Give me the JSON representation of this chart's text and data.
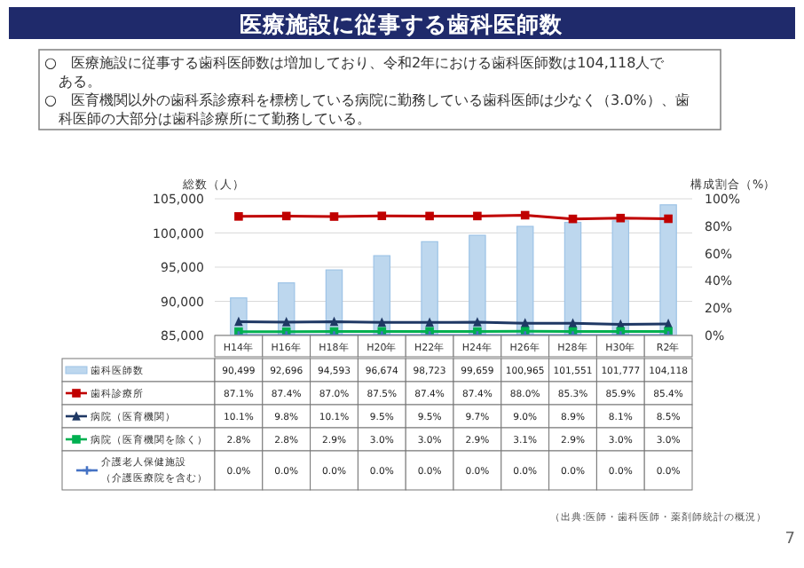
{
  "chart_data": {
    "type": "bar",
    "title": "医療施設に従事する歯科医師数",
    "annotations": [
      "○　医療施設に従事する歯科医師数は増加しており、令和2年における歯科医師数は104,118人である。",
      "○　医育機関以外の歯科系診療科を標榜している病院に勤務している歯科医師は少なく（3.0%）、歯科医師の大部分は歯科診療所にて勤務している。",
      "（出典:医師・歯科医師・薬剤師統計の概況）",
      "7"
    ],
    "ylabel": "総数（人）",
    "y2label": "構成割合（%）",
    "categories": [
      "H14年",
      "H16年",
      "H18年",
      "H20年",
      "H22年",
      "H24年",
      "H26年",
      "H28年",
      "H30年",
      "R2年"
    ],
    "ylim": [
      85000,
      105000
    ],
    "yticks": [
      {
        "value": 85000,
        "label": "85,000"
      },
      {
        "value": 90000,
        "label": "90,000"
      },
      {
        "value": 95000,
        "label": "95,000"
      },
      {
        "value": 100000,
        "label": "100,000"
      },
      {
        "value": 105000,
        "label": "105,000"
      }
    ],
    "y2lim": [
      0,
      100
    ],
    "y2ticks": [
      {
        "value": 0,
        "label": "0%"
      },
      {
        "value": 20,
        "label": "20%"
      },
      {
        "value": 40,
        "label": "40%"
      },
      {
        "value": 60,
        "label": "60%"
      },
      {
        "value": 80,
        "label": "80%"
      },
      {
        "value": 100,
        "label": "100%"
      }
    ],
    "grid": "y",
    "legend": "bottom left",
    "series": [
      {
        "name": "歯科医師数",
        "color": "#bdd7ee",
        "values": [
          90499,
          92696,
          94593,
          96674,
          98723,
          99659,
          100965,
          101551,
          101777,
          104118
        ],
        "value_labels": [
          "90,499",
          "92,696",
          "94,593",
          "96,674",
          "98,723",
          "99,659",
          "100,965",
          "101,551",
          "101,777",
          "104,118"
        ]
      },
      {
        "name": "歯科診療所",
        "type": "line",
        "axis": "y2",
        "color": "#c00000",
        "marker": "square",
        "values": [
          87.1,
          87.4,
          87.0,
          87.5,
          87.4,
          87.4,
          88.0,
          85.3,
          85.9,
          85.4
        ],
        "value_labels": [
          "87.1%",
          "87.4%",
          "87.0%",
          "87.5%",
          "87.4%",
          "87.4%",
          "88.0%",
          "85.3%",
          "85.9%",
          "85.4%"
        ]
      },
      {
        "name": "病院（医育機関）",
        "type": "line",
        "axis": "y2",
        "color": "#1f3864",
        "marker": "triangle",
        "values": [
          10.1,
          9.8,
          10.1,
          9.5,
          9.5,
          9.7,
          9.0,
          8.9,
          8.1,
          8.5
        ],
        "value_labels": [
          "10.1%",
          "9.8%",
          "10.1%",
          "9.5%",
          "9.5%",
          "9.7%",
          "9.0%",
          "8.9%",
          "8.1%",
          "8.5%"
        ]
      },
      {
        "name": "病院（医育機関を除く）",
        "type": "line",
        "axis": "y2",
        "color": "#00b050",
        "marker": "square",
        "values": [
          2.8,
          2.8,
          2.9,
          3.0,
          3.0,
          2.9,
          3.1,
          2.9,
          3.0,
          3.0
        ],
        "value_labels": [
          "2.8%",
          "2.8%",
          "2.9%",
          "3.0%",
          "3.0%",
          "2.9%",
          "3.1%",
          "2.9%",
          "3.0%",
          "3.0%"
        ]
      },
      {
        "name": "介護老人保健施設（介護医療院を含む）",
        "type": "line",
        "axis": "y2",
        "color": "#4472c4",
        "marker": "cross",
        "values": [
          0.0,
          0.0,
          0.0,
          0.0,
          0.0,
          0.0,
          0.0,
          0.0,
          0.0,
          0.0
        ],
        "value_labels": [
          "0.0%",
          "0.0%",
          "0.0%",
          "0.0%",
          "0.0%",
          "0.0%",
          "0.0%",
          "0.0%",
          "0.0%",
          "0.0%"
        ]
      }
    ]
  }
}
